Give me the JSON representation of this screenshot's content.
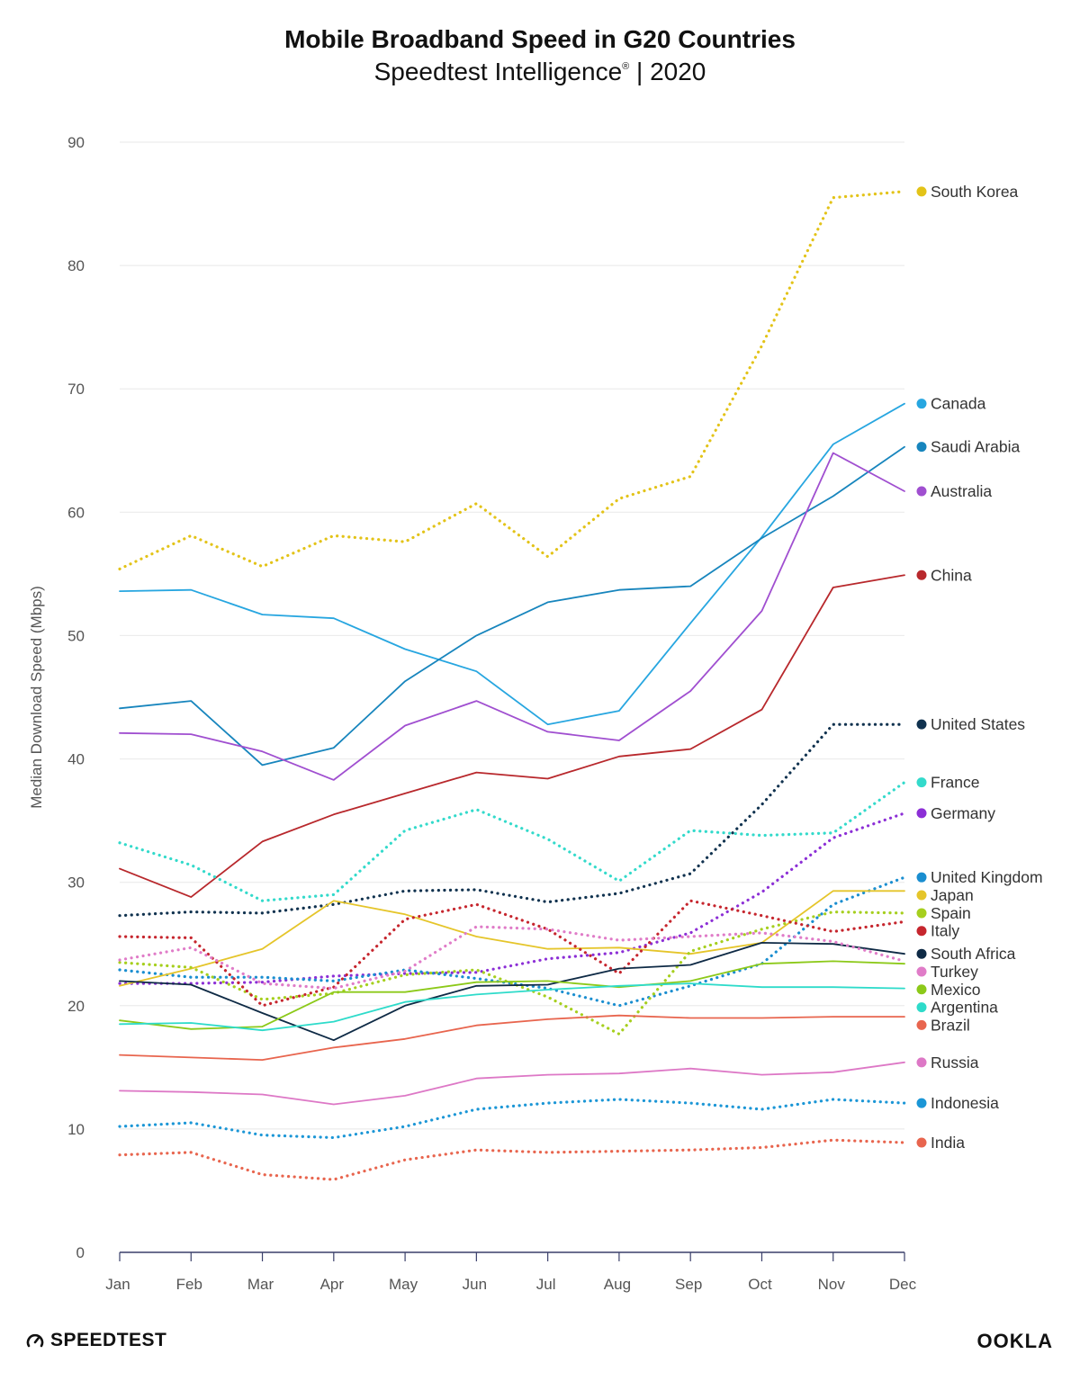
{
  "header": {
    "title": "Mobile Broadband Speed in G20 Countries",
    "subtitle_main": "Speedtest Intelligence",
    "subtitle_mark": "®",
    "subtitle_year": "| 2020"
  },
  "footer": {
    "speedtest_logo": "SPEEDTEST",
    "ookla_logo": "OOKLA"
  },
  "chart_data": {
    "type": "line",
    "title": "Mobile Broadband Speed in G20 Countries",
    "subtitle": "Speedtest Intelligence® | 2020",
    "xlabel": "",
    "ylabel": "Median Download Speed (Mbps)",
    "ylim": [
      0,
      90
    ],
    "yticks": [
      0,
      10,
      20,
      30,
      40,
      50,
      60,
      70,
      80,
      90
    ],
    "grid": true,
    "legend_placement": "right, at line ends",
    "categories": [
      "Jan",
      "Feb",
      "Mar",
      "Apr",
      "May",
      "Jun",
      "Jul",
      "Aug",
      "Sep",
      "Oct",
      "Nov",
      "Dec"
    ],
    "series": [
      {
        "name": "South Korea",
        "color": "#e3c318",
        "style": "dotted",
        "values": [
          55.4,
          58.1,
          55.6,
          58.1,
          57.6,
          60.7,
          56.4,
          61.1,
          62.9,
          73.5,
          85.5,
          86.0
        ]
      },
      {
        "name": "Canada",
        "color": "#27a6e0",
        "style": "solid",
        "values": [
          53.6,
          53.7,
          51.7,
          51.4,
          48.9,
          47.1,
          42.8,
          43.9,
          51.0,
          58.0,
          65.5,
          68.8
        ]
      },
      {
        "name": "Saudi Arabia",
        "color": "#1785bd",
        "style": "solid",
        "values": [
          44.1,
          44.7,
          39.5,
          40.9,
          46.3,
          50.0,
          52.7,
          53.7,
          54.0,
          57.9,
          61.3,
          65.3
        ]
      },
      {
        "name": "Australia",
        "color": "#a04fd0",
        "style": "solid",
        "values": [
          42.1,
          42.0,
          40.6,
          38.3,
          42.7,
          44.7,
          42.2,
          41.5,
          45.5,
          52.0,
          64.8,
          61.7
        ]
      },
      {
        "name": "China",
        "color": "#b8282c",
        "style": "solid",
        "values": [
          31.1,
          28.8,
          33.3,
          35.5,
          37.2,
          38.9,
          38.4,
          40.2,
          40.8,
          44.0,
          53.9,
          54.9
        ]
      },
      {
        "name": "United States",
        "color": "#10324f",
        "style": "dotted",
        "values": [
          27.3,
          27.6,
          27.5,
          28.2,
          29.3,
          29.4,
          28.4,
          29.1,
          30.7,
          36.3,
          42.8,
          42.8
        ]
      },
      {
        "name": "France",
        "color": "#33dacb",
        "style": "dotted",
        "values": [
          33.2,
          31.4,
          28.5,
          29.0,
          34.2,
          35.9,
          33.5,
          30.1,
          34.2,
          33.8,
          34.0,
          38.1
        ]
      },
      {
        "name": "Germany",
        "color": "#8c2fd6",
        "style": "dotted",
        "values": [
          21.8,
          21.8,
          21.9,
          22.4,
          22.6,
          22.7,
          23.8,
          24.3,
          25.9,
          29.2,
          33.6,
          35.6
        ]
      },
      {
        "name": "United Kingdom",
        "color": "#1a8ed0",
        "style": "dotted",
        "values": [
          22.9,
          22.3,
          22.3,
          22.0,
          22.9,
          22.2,
          21.4,
          20.0,
          21.6,
          23.4,
          28.2,
          30.4
        ]
      },
      {
        "name": "Japan",
        "color": "#e5c52a",
        "style": "solid",
        "values": [
          21.6,
          23.0,
          24.6,
          28.5,
          27.4,
          25.6,
          24.6,
          24.7,
          24.2,
          25.1,
          29.3,
          29.3
        ]
      },
      {
        "name": "Spain",
        "color": "#a6cf1e",
        "style": "dotted",
        "values": [
          23.5,
          23.1,
          20.5,
          21.0,
          22.5,
          22.9,
          20.7,
          17.7,
          24.4,
          26.2,
          27.6,
          27.5
        ]
      },
      {
        "name": "Italy",
        "color": "#c6262e",
        "style": "dotted",
        "values": [
          25.6,
          25.5,
          20.0,
          21.5,
          27.0,
          28.2,
          26.2,
          22.6,
          28.5,
          27.3,
          26.0,
          26.8
        ]
      },
      {
        "name": "South Africa",
        "color": "#0e2a45",
        "style": "solid",
        "values": [
          22.0,
          21.7,
          19.4,
          17.2,
          20.0,
          21.6,
          21.7,
          23.0,
          23.3,
          25.1,
          25.0,
          24.2
        ]
      },
      {
        "name": "Turkey",
        "color": "#e07cc8",
        "style": "dotted",
        "values": [
          23.7,
          24.7,
          21.8,
          21.4,
          22.8,
          26.4,
          26.2,
          25.3,
          25.6,
          25.9,
          25.2,
          23.6
        ]
      },
      {
        "name": "Mexico",
        "color": "#8cc919",
        "style": "solid",
        "values": [
          18.8,
          18.1,
          18.3,
          21.1,
          21.1,
          21.9,
          22.0,
          21.5,
          22.0,
          23.4,
          23.6,
          23.4
        ]
      },
      {
        "name": "Argentina",
        "color": "#2edbca",
        "style": "solid",
        "values": [
          18.5,
          18.6,
          18.0,
          18.7,
          20.3,
          20.9,
          21.3,
          21.6,
          21.8,
          21.5,
          21.5,
          21.4
        ]
      },
      {
        "name": "Brazil",
        "color": "#e8654e",
        "style": "solid",
        "values": [
          16.0,
          15.8,
          15.6,
          16.6,
          17.3,
          18.4,
          18.9,
          19.2,
          19.0,
          19.0,
          19.1,
          19.1
        ]
      },
      {
        "name": "Russia",
        "color": "#dd78c6",
        "style": "solid",
        "values": [
          13.1,
          13.0,
          12.8,
          12.0,
          12.7,
          14.1,
          14.4,
          14.5,
          14.9,
          14.4,
          14.6,
          15.4
        ]
      },
      {
        "name": "Indonesia",
        "color": "#1b96d6",
        "style": "dotted",
        "values": [
          10.2,
          10.5,
          9.5,
          9.3,
          10.2,
          11.6,
          12.1,
          12.4,
          12.1,
          11.6,
          12.4,
          12.1
        ]
      },
      {
        "name": "India",
        "color": "#e8654e",
        "style": "dotted",
        "values": [
          7.9,
          8.1,
          6.3,
          5.9,
          7.5,
          8.3,
          8.1,
          8.2,
          8.3,
          8.5,
          9.1,
          8.9
        ]
      }
    ]
  }
}
